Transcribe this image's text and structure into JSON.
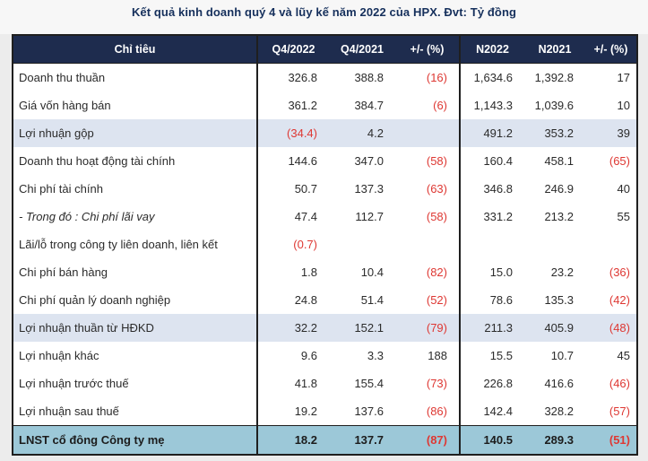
{
  "title": "Kết quả kinh doanh quý 4 và lũy kế năm 2022 của HPX. Đvt: Tỷ đồng",
  "colors": {
    "page_bg": "#f7f7f7",
    "panel_bg": "#ececec",
    "title_text": "#16305C",
    "header_bg": "#1E2C4E",
    "header_text": "#ffffff",
    "body_text": "#2b2b2b",
    "negative_red": "#DE3833",
    "row_highlight_bg": "#DDE4F0",
    "total_row_bg": "#9CC8D8",
    "border": "#1f1f1f"
  },
  "chart_data": {
    "type": "table",
    "title": "Kết quả kinh doanh quý 4 và lũy kế năm 2022 của HPX. Đvt: Tỷ đồng",
    "unit": "Tỷ đồng",
    "columns": [
      "Chỉ tiêu",
      "Q4/2022",
      "Q4/2021",
      "+/- (%)",
      "N2022",
      "N2021",
      "+/- (%)"
    ],
    "rows": [
      {
        "label": "Doanh thu thuần",
        "variant": "default",
        "values": [
          "326.8",
          "388.8",
          "(16)",
          "1,634.6",
          "1,392.8",
          "17"
        ]
      },
      {
        "label": "Giá vốn hàng bán",
        "variant": "default",
        "values": [
          "361.2",
          "384.7",
          "(6)",
          "1,143.3",
          "1,039.6",
          "10"
        ]
      },
      {
        "label": "Lợi nhuận gộp",
        "variant": "highlight",
        "values": [
          "(34.4)",
          "4.2",
          "",
          "491.2",
          "353.2",
          "39"
        ]
      },
      {
        "label": "Doanh thu hoạt động tài chính",
        "variant": "default",
        "values": [
          "144.6",
          "347.0",
          "(58)",
          "160.4",
          "458.1",
          "(65)"
        ]
      },
      {
        "label": "Chi phí tài chính",
        "variant": "default",
        "values": [
          "50.7",
          "137.3",
          "(63)",
          "346.8",
          "246.9",
          "40"
        ]
      },
      {
        "label": "- Trong đó : Chi phí lãi vay",
        "variant": "italic",
        "values": [
          "47.4",
          "112.7",
          "(58)",
          "331.2",
          "213.2",
          "55"
        ]
      },
      {
        "label": "Lãi/lỗ trong công ty liên doanh, liên kết",
        "variant": "default",
        "values": [
          "(0.7)",
          "",
          "",
          "",
          "",
          ""
        ]
      },
      {
        "label": "Chi phí bán hàng",
        "variant": "default",
        "values": [
          "1.8",
          "10.4",
          "(82)",
          "15.0",
          "23.2",
          "(36)"
        ]
      },
      {
        "label": "Chi phí quản lý doanh nghiệp",
        "variant": "default",
        "values": [
          "24.8",
          "51.4",
          "(52)",
          "78.6",
          "135.3",
          "(42)"
        ]
      },
      {
        "label": "Lợi nhuận thuần từ HĐKD",
        "variant": "highlight",
        "values": [
          "32.2",
          "152.1",
          "(79)",
          "211.3",
          "405.9",
          "(48)"
        ]
      },
      {
        "label": "Lợi nhuận khác",
        "variant": "default",
        "values": [
          "9.6",
          "3.3",
          "188",
          "15.5",
          "10.7",
          "45"
        ]
      },
      {
        "label": "Lợi nhuận trước thuế",
        "variant": "default",
        "values": [
          "41.8",
          "155.4",
          "(73)",
          "226.8",
          "416.6",
          "(46)"
        ]
      },
      {
        "label": "Lợi nhuận sau thuế",
        "variant": "default",
        "values": [
          "19.2",
          "137.6",
          "(86)",
          "142.4",
          "328.2",
          "(57)"
        ]
      },
      {
        "label": "LNST cổ đông Công ty mẹ",
        "variant": "total",
        "values": [
          "18.2",
          "137.7",
          "(87)",
          "140.5",
          "289.3",
          "(51)"
        ]
      }
    ]
  }
}
